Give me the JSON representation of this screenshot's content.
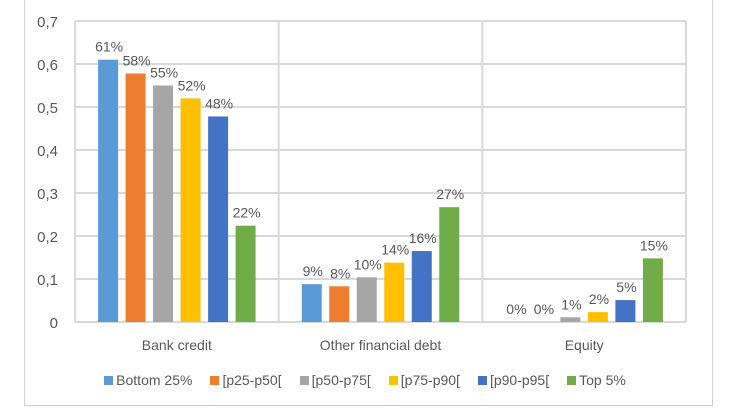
{
  "chart_data": {
    "type": "bar",
    "categories": [
      "Bank credit",
      "Other financial debt",
      "Equity"
    ],
    "ylim": [
      0,
      0.7
    ],
    "yticks": [
      "0",
      "0,1",
      "0,2",
      "0,3",
      "0,4",
      "0,5",
      "0,6",
      "0,7"
    ],
    "grid": true,
    "legend_position": "bottom",
    "series": [
      {
        "name": "Bottom 25%",
        "color": "#5b9bd5",
        "values": [
          0.61,
          0.088,
          0
        ],
        "labels": [
          "61%",
          "9%",
          "0%"
        ]
      },
      {
        "name": "[p25-p50[",
        "color": "#ed7d31",
        "values": [
          0.578,
          0.083,
          0
        ],
        "labels": [
          "58%",
          "8%",
          "0%"
        ]
      },
      {
        "name": "[p50-p75[",
        "color": "#a5a5a5",
        "values": [
          0.55,
          0.104,
          0.011
        ],
        "labels": [
          "55%",
          "10%",
          "1%"
        ]
      },
      {
        "name": "[p75-p90[",
        "color": "#ffc000",
        "values": [
          0.52,
          0.138,
          0.023
        ],
        "labels": [
          "52%",
          "14%",
          "2%"
        ]
      },
      {
        "name": "[p90-p95[",
        "color": "#4472c4",
        "values": [
          0.478,
          0.165,
          0.051
        ],
        "labels": [
          "48%",
          "16%",
          "5%"
        ]
      },
      {
        "name": "Top 5%",
        "color": "#70ad47",
        "values": [
          0.224,
          0.267,
          0.148
        ],
        "labels": [
          "22%",
          "27%",
          "15%"
        ]
      }
    ]
  }
}
